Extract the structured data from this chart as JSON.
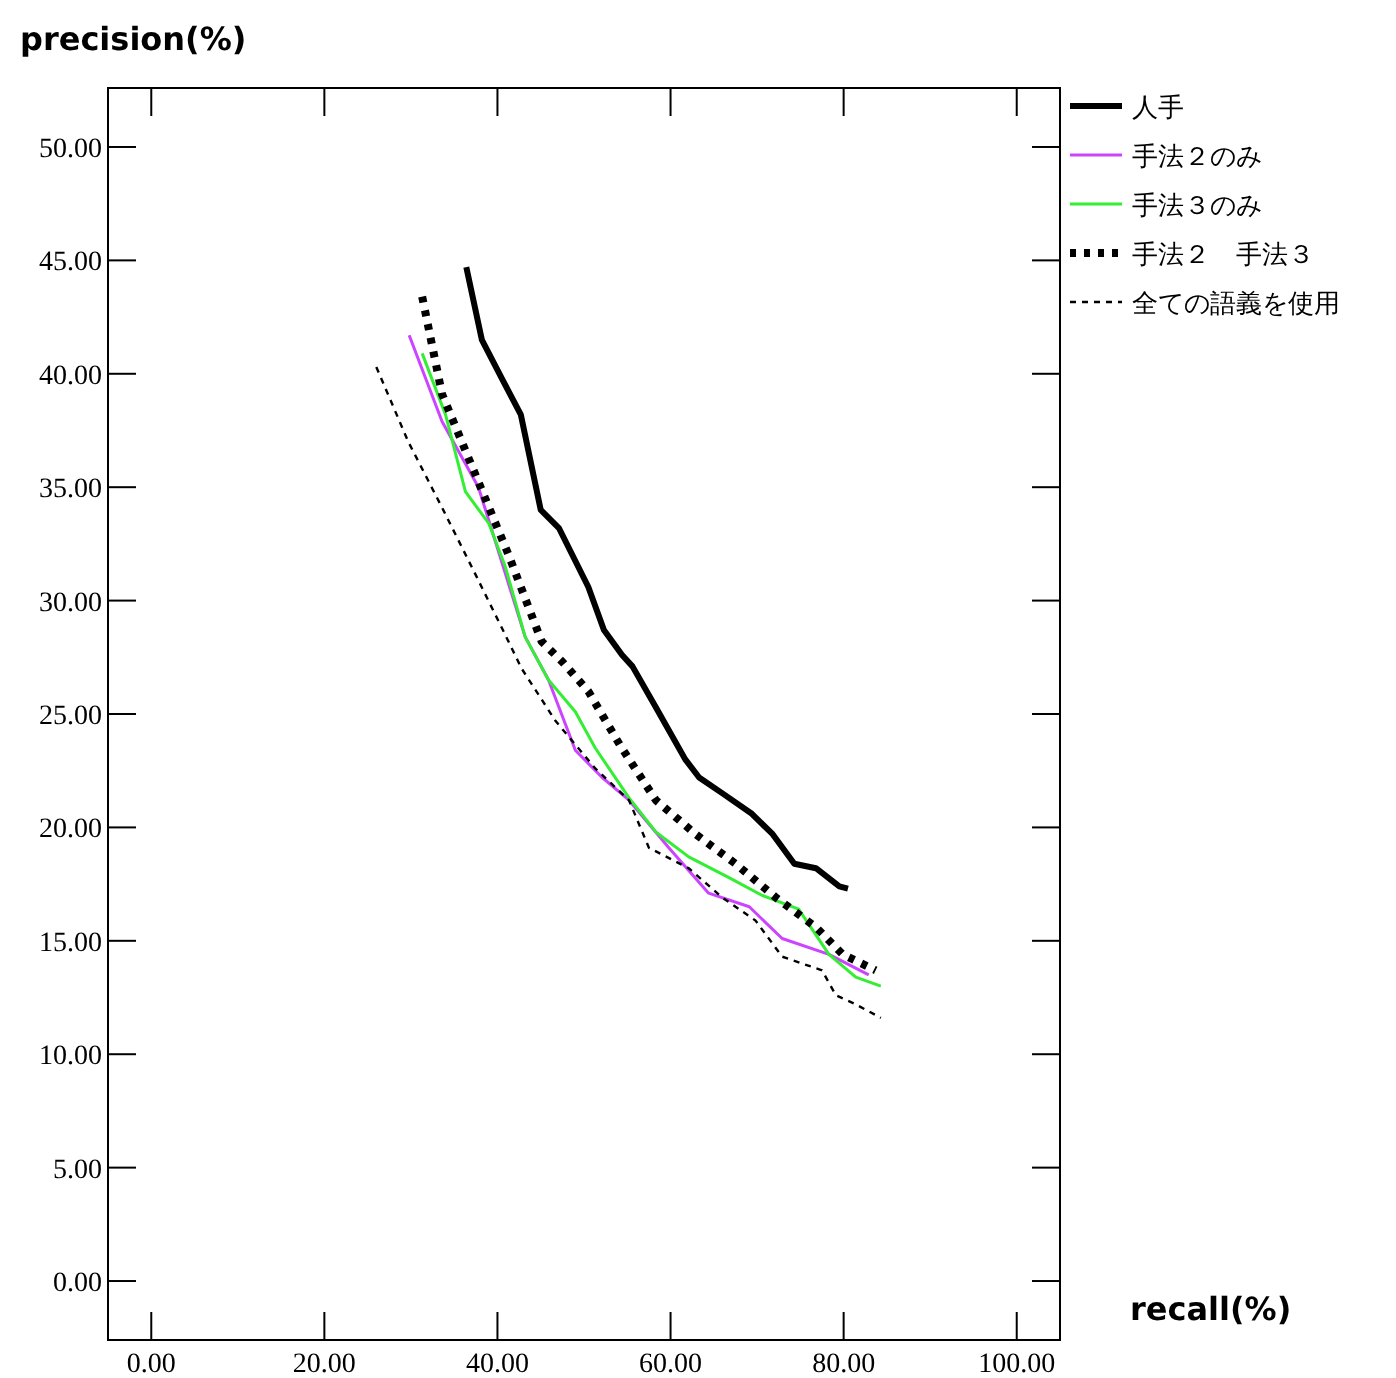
{
  "chart_data": {
    "type": "line",
    "xlabel": "recall(%)",
    "ylabel": "precision(%)",
    "xlim": [
      -5,
      105
    ],
    "ylim": [
      -2.6,
      52.6
    ],
    "xticks": [
      {
        "value": 0,
        "label": "0.00"
      },
      {
        "value": 20,
        "label": "20.00"
      },
      {
        "value": 40,
        "label": "40.00"
      },
      {
        "value": 60,
        "label": "60.00"
      },
      {
        "value": 80,
        "label": "80.00"
      },
      {
        "value": 100,
        "label": "100.00"
      }
    ],
    "yticks": [
      {
        "value": 0,
        "label": "0.00"
      },
      {
        "value": 5,
        "label": "5.00"
      },
      {
        "value": 10,
        "label": "10.00"
      },
      {
        "value": 15,
        "label": "15.00"
      },
      {
        "value": 20,
        "label": "20.00"
      },
      {
        "value": 25,
        "label": "25.00"
      },
      {
        "value": 30,
        "label": "30.00"
      },
      {
        "value": 35,
        "label": "35.00"
      },
      {
        "value": 40,
        "label": "40.00"
      },
      {
        "value": 45,
        "label": "45.00"
      },
      {
        "value": 50,
        "label": "50.00"
      }
    ],
    "legend": "right",
    "marker": "none",
    "series": [
      {
        "name": "人手",
        "color": "#000000",
        "line_style": "solid",
        "x": [
          36.4,
          38.2,
          40.5,
          42.7,
          45.0,
          47.1,
          50.5,
          52.3,
          54.4,
          55.6,
          58.3,
          61.7,
          63.3,
          66.0,
          69.4,
          71.8,
          74.3,
          76.8,
          79.5,
          80.5
        ],
        "values": [
          44.7,
          41.5,
          39.8,
          38.2,
          34.0,
          33.2,
          30.6,
          28.7,
          27.6,
          27.1,
          25.3,
          23.0,
          22.2,
          21.5,
          20.6,
          19.7,
          18.4,
          18.2,
          17.4,
          17.3
        ]
      },
      {
        "name": "手法２のみ",
        "color": "#cc44ff",
        "line_style": "solid",
        "x": [
          29.8,
          33.6,
          37.8,
          40.5,
          43.2,
          45.9,
          49.0,
          52.1,
          55.2,
          59.8,
          64.4,
          69.1,
          72.9,
          78.3,
          82.9
        ],
        "values": [
          41.7,
          37.9,
          35.0,
          31.7,
          28.4,
          26.5,
          23.4,
          22.2,
          21.2,
          19.1,
          17.1,
          16.5,
          15.1,
          14.4,
          13.5
        ]
      },
      {
        "name": "手法３のみ",
        "color": "#33ee33",
        "line_style": "solid",
        "x": [
          31.3,
          34.0,
          36.3,
          39.0,
          40.9,
          43.2,
          45.9,
          49.0,
          51.3,
          55.2,
          58.3,
          62.1,
          66.7,
          70.6,
          74.8,
          78.3,
          81.4,
          84.3
        ],
        "values": [
          40.9,
          38.2,
          34.8,
          33.4,
          31.5,
          28.4,
          26.5,
          25.1,
          23.5,
          21.3,
          19.8,
          18.7,
          17.8,
          17.0,
          16.4,
          14.4,
          13.4,
          13.0
        ]
      },
      {
        "name": "手法２　手法３",
        "color": "#000000",
        "line_style": "dotted",
        "x": [
          31.3,
          33.6,
          37.4,
          41.3,
          45.1,
          47.5,
          50.5,
          54.2,
          58.3,
          62.9,
          67.5,
          72.2,
          76.8,
          79.9,
          83.7
        ],
        "values": [
          43.4,
          39.1,
          35.6,
          32.0,
          28.2,
          27.3,
          26.0,
          23.6,
          21.2,
          19.7,
          18.4,
          16.9,
          15.6,
          14.4,
          13.7
        ]
      },
      {
        "name": "全ての語義を使用",
        "color": "#000000",
        "line_style": "dashed",
        "x": [
          26.0,
          29.7,
          33.6,
          37.4,
          40.5,
          42.8,
          46.7,
          51.3,
          55.2,
          57.5,
          62.1,
          66.0,
          69.8,
          72.9,
          77.5,
          79.1,
          81.4,
          84.3
        ],
        "values": [
          40.3,
          37.0,
          34.1,
          31.2,
          28.8,
          27.0,
          24.7,
          22.6,
          21.2,
          19.1,
          18.2,
          16.9,
          15.9,
          14.3,
          13.7,
          12.6,
          12.2,
          11.6
        ]
      }
    ]
  }
}
